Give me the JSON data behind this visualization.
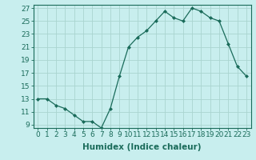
{
  "x": [
    0,
    1,
    2,
    3,
    4,
    5,
    6,
    7,
    8,
    9,
    10,
    11,
    12,
    13,
    14,
    15,
    16,
    17,
    18,
    19,
    20,
    21,
    22,
    23
  ],
  "y": [
    13,
    13,
    12,
    11.5,
    10.5,
    9.5,
    9.5,
    8.5,
    11.5,
    16.5,
    21,
    22.5,
    23.5,
    25,
    26.5,
    25.5,
    25,
    27,
    26.5,
    25.5,
    25,
    21.5,
    18,
    16.5
  ],
  "line_color": "#1a6b5a",
  "marker_color": "#1a6b5a",
  "bg_color": "#c8eeee",
  "grid_color": "#aad4d0",
  "xlabel": "Humidex (Indice chaleur)",
  "xlim": [
    -0.5,
    23.5
  ],
  "ylim": [
    8.5,
    27.5
  ],
  "yticks": [
    9,
    11,
    13,
    15,
    17,
    19,
    21,
    23,
    25,
    27
  ],
  "xtick_labels": [
    "0",
    "1",
    "2",
    "3",
    "4",
    "5",
    "6",
    "7",
    "8",
    "9",
    "10",
    "11",
    "12",
    "13",
    "14",
    "15",
    "16",
    "17",
    "18",
    "19",
    "20",
    "21",
    "22",
    "23"
  ],
  "tick_fontsize": 6.5,
  "xlabel_fontsize": 7.5
}
